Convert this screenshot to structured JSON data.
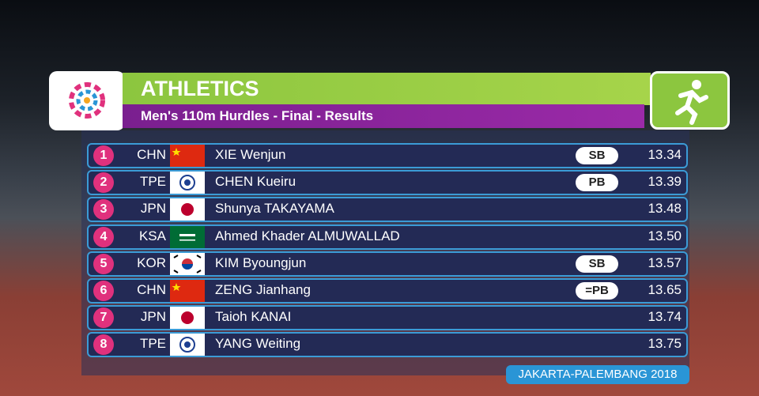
{
  "header": {
    "title": "ATHLETICS",
    "subtitle": "Men's 110m Hurdles - Final - Results"
  },
  "results": [
    {
      "rank": 1,
      "country": "CHN",
      "name": "XIE Wenjun",
      "note": "SB",
      "time": "13.34"
    },
    {
      "rank": 2,
      "country": "TPE",
      "name": "CHEN Kueiru",
      "note": "PB",
      "time": "13.39"
    },
    {
      "rank": 3,
      "country": "JPN",
      "name": "Shunya TAKAYAMA",
      "time": "13.48"
    },
    {
      "rank": 4,
      "country": "KSA",
      "name": "Ahmed Khader ALMUWALLAD",
      "time": "13.50"
    },
    {
      "rank": 5,
      "country": "KOR",
      "name": "KIM Byoungjun",
      "note": "SB",
      "time": "13.57"
    },
    {
      "rank": 6,
      "country": "CHN",
      "name": "ZENG Jianhang",
      "note": "=PB",
      "time": "13.65"
    },
    {
      "rank": 7,
      "country": "JPN",
      "name": "Taioh KANAI",
      "time": "13.74"
    },
    {
      "rank": 8,
      "country": "TPE",
      "name": "YANG Weiting",
      "time": "13.75"
    }
  ],
  "footer": "JAKARTA-PALEMBANG 2018"
}
